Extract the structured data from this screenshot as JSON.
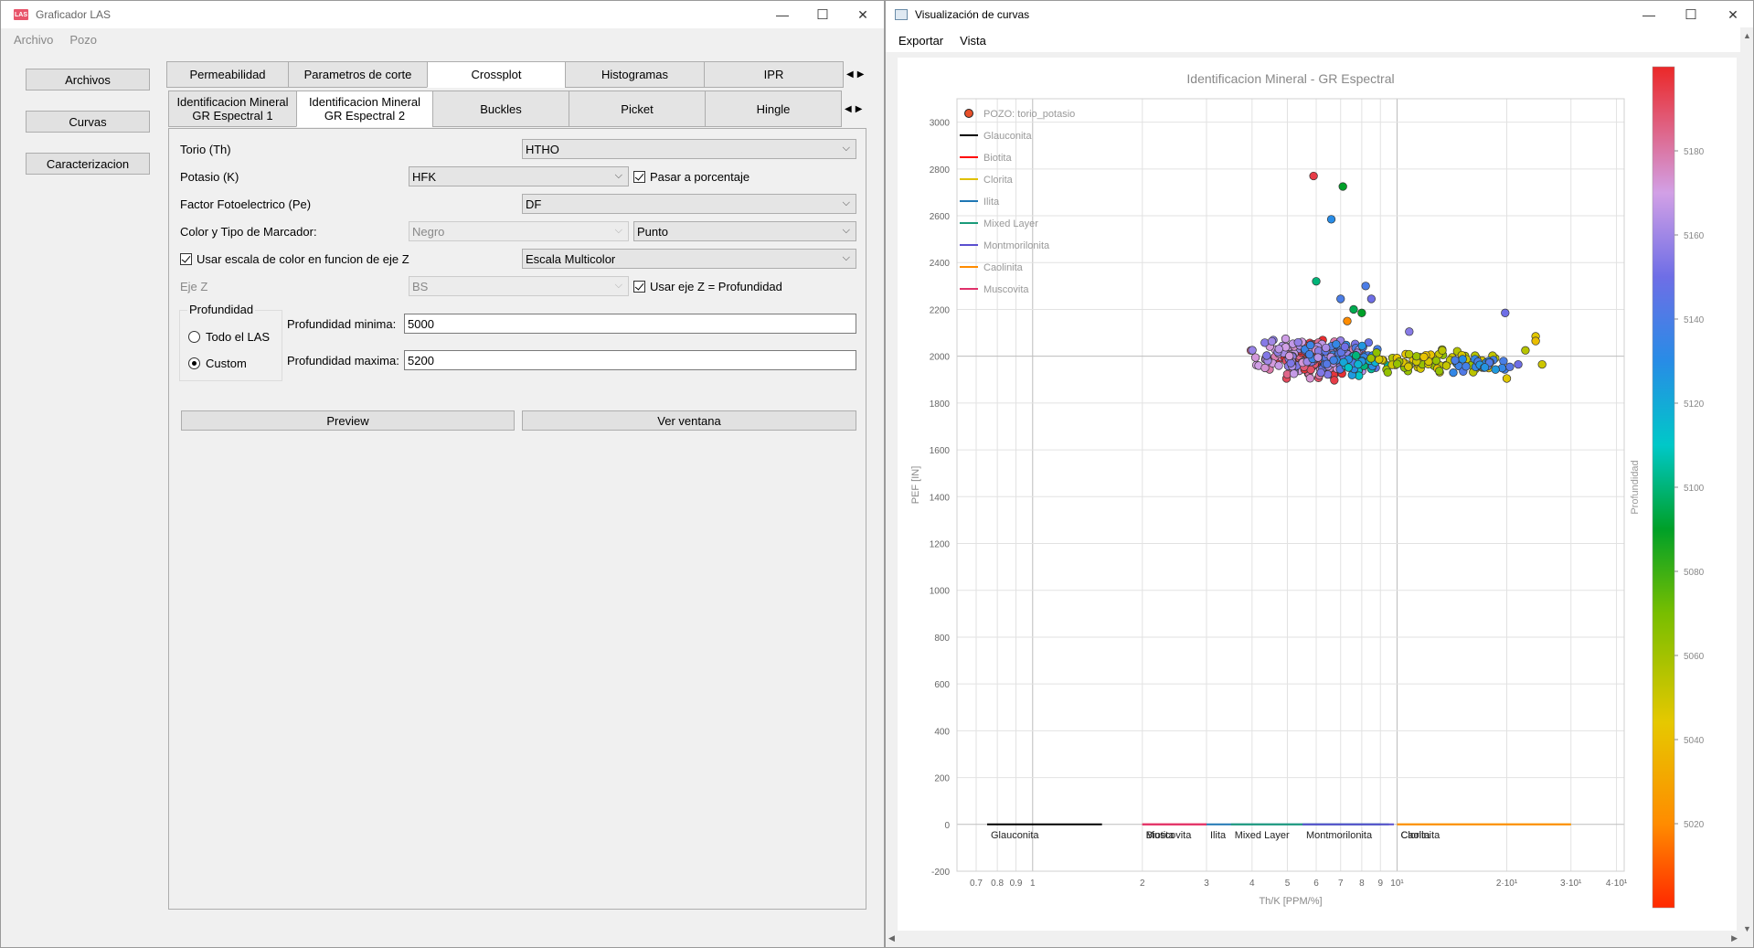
{
  "left_window": {
    "title": "Graficador LAS",
    "icon_text": "LAS",
    "controls": {
      "minimize": "—",
      "maximize": "☐",
      "close": "✕"
    },
    "menu": [
      "Archivo",
      "Pozo"
    ],
    "sidebar": [
      "Archivos",
      "Curvas",
      "Caracterizacion"
    ],
    "main_tabs": [
      "Permeabilidad",
      "Parametros de corte",
      "Crossplot",
      "Histogramas",
      "IPR"
    ],
    "sub_tabs": [
      "Identificacion Mineral\nGR Espectral 1",
      "Identificacion Mineral\nGR Espectral 2",
      "Buckles",
      "Picket",
      "Hingle"
    ],
    "form": {
      "torio_label": "Torio (Th)",
      "torio_value": "HTHO",
      "potasio_label": "Potasio (K)",
      "potasio_value": "HFK",
      "pasar_porcentaje": "Pasar a porcentaje",
      "pe_label": "Factor Fotoelectrico (Pe)",
      "pe_value": "DF",
      "marcador_label": "Color y Tipo de Marcador:",
      "color_value": "Negro",
      "tipo_value": "Punto",
      "escala_label": "Usar escala de color en funcion de eje Z",
      "escala_value": "Escala Multicolor",
      "ejez_label": "Eje Z",
      "ejez_value": "BS",
      "ejez_prof": "Usar eje Z = Profundidad",
      "prof_group": "Profundidad",
      "todo_las": "Todo el LAS",
      "custom": "Custom",
      "prof_min_label": "Profundidad minima:",
      "prof_min": "5000",
      "prof_max_label": "Profundidad maxima:",
      "prof_max": "5200",
      "preview": "Preview",
      "ver_ventana": "Ver ventana"
    }
  },
  "right_window": {
    "title": "Visualización de curvas",
    "controls": {
      "minimize": "—",
      "maximize": "☐",
      "close": "✕"
    },
    "menu": [
      "Exportar",
      "Vista"
    ]
  },
  "chart_data": {
    "type": "scatter",
    "title": "Identificacion Mineral - GR Espectral",
    "xlabel": "Th/K [PPM/%]",
    "ylabel": "PEF [IN]",
    "xscale": "log",
    "xlim": [
      0.62,
      42
    ],
    "ylim": [
      -200,
      3100
    ],
    "x_ticks": [
      {
        "v": 0.7,
        "label": "0.7"
      },
      {
        "v": 0.8,
        "label": "0.8"
      },
      {
        "v": 0.9,
        "label": "0.9"
      },
      {
        "v": 1,
        "label": "1"
      },
      {
        "v": 2,
        "label": "2"
      },
      {
        "v": 3,
        "label": "3"
      },
      {
        "v": 4,
        "label": "4"
      },
      {
        "v": 5,
        "label": "5"
      },
      {
        "v": 6,
        "label": "6"
      },
      {
        "v": 7,
        "label": "7"
      },
      {
        "v": 8,
        "label": "8"
      },
      {
        "v": 9,
        "label": "9"
      },
      {
        "v": 10,
        "label": "10¹"
      },
      {
        "v": 20,
        "label": "2·10¹"
      },
      {
        "v": 30,
        "label": "3·10¹"
      },
      {
        "v": 40,
        "label": "4·10¹"
      }
    ],
    "y_ticks": [
      -200,
      0,
      200,
      400,
      600,
      800,
      1000,
      1200,
      1400,
      1600,
      1800,
      2000,
      2200,
      2400,
      2600,
      2800,
      3000
    ],
    "legend": [
      {
        "name": "POZO: torio_potasio",
        "marker": "point"
      },
      {
        "name": "Glauconita",
        "color": "#000000"
      },
      {
        "name": "Biotita",
        "color": "#ff0000"
      },
      {
        "name": "Clorita",
        "color": "#e0c000"
      },
      {
        "name": "Ilita",
        "color": "#1f77b4"
      },
      {
        "name": "Mixed Layer",
        "color": "#1a9a7a"
      },
      {
        "name": "Montmorilonita",
        "color": "#5a4fcf"
      },
      {
        "name": "Caolinita",
        "color": "#ff8c00"
      },
      {
        "name": "Muscovita",
        "color": "#e0306a"
      }
    ],
    "mineral_bands": [
      {
        "name": "Glauconita",
        "label": "Glauconita",
        "x0": 0.75,
        "x1": 1.55,
        "color": "#000000"
      },
      {
        "name": "Biotita",
        "label": "Biotita",
        "x0": 2.0,
        "x1": 3.0,
        "color": "#ff0000"
      },
      {
        "name": "Muscovita",
        "label": "Muscovita",
        "x0": 2.0,
        "x1": 3.0,
        "color": "#e0306a"
      },
      {
        "name": "Ilita",
        "label": "Ilita",
        "x0": 3.0,
        "x1": 9.0,
        "color": "#1f77b4"
      },
      {
        "name": "Mixed Layer",
        "label": "Mixed Layer",
        "x0": 3.5,
        "x1": 9.5,
        "color": "#1a9a7a"
      },
      {
        "name": "Montmorilonita",
        "label": "Montmorilonita",
        "x0": 5.5,
        "x1": 9.8,
        "color": "#5a4fcf"
      },
      {
        "name": "Clorita",
        "label": "Clorita",
        "x0": 10,
        "x1": 30,
        "color": "#e0c000"
      },
      {
        "name": "Caolinita",
        "label": "Caolinita",
        "x0": 10,
        "x1": 30,
        "color": "#ff8c00"
      }
    ],
    "colorbar": {
      "label": "Profundidad",
      "min": 5000,
      "max": 5200,
      "ticks": [
        5020,
        5040,
        5060,
        5080,
        5100,
        5120,
        5140,
        5160,
        5180
      ]
    },
    "clusters": [
      {
        "cx": 5.9,
        "cy": 1985,
        "sx": 0.09,
        "sy": 55,
        "n": 150,
        "depth": [
          5170,
          5200
        ]
      },
      {
        "cx": 5.4,
        "cy": 2000,
        "sx": 0.1,
        "sy": 50,
        "n": 70,
        "depth": [
          5150,
          5175
        ]
      },
      {
        "cx": 7.0,
        "cy": 1990,
        "sx": 0.08,
        "sy": 45,
        "n": 70,
        "depth": [
          5130,
          5165
        ]
      },
      {
        "cx": 7.8,
        "cy": 1975,
        "sx": 0.06,
        "sy": 40,
        "n": 40,
        "depth": [
          5100,
          5140
        ]
      },
      {
        "cx": 12.5,
        "cy": 1975,
        "sx": 0.14,
        "sy": 35,
        "n": 70,
        "depth": [
          5040,
          5065
        ]
      },
      {
        "cx": 17.0,
        "cy": 1965,
        "sx": 0.1,
        "sy": 25,
        "n": 25,
        "depth": [
          5125,
          5145
        ]
      }
    ],
    "points": [
      {
        "x": 5.9,
        "y": 2770,
        "depth": 5195
      },
      {
        "x": 7.1,
        "y": 2725,
        "depth": 5090
      },
      {
        "x": 6.6,
        "y": 2585,
        "depth": 5130
      },
      {
        "x": 6.0,
        "y": 2320,
        "depth": 5100
      },
      {
        "x": 8.2,
        "y": 2300,
        "depth": 5140
      },
      {
        "x": 7.0,
        "y": 2245,
        "depth": 5140
      },
      {
        "x": 8.5,
        "y": 2245,
        "depth": 5150
      },
      {
        "x": 7.6,
        "y": 2200,
        "depth": 5095
      },
      {
        "x": 8.0,
        "y": 2185,
        "depth": 5090
      },
      {
        "x": 7.3,
        "y": 2150,
        "depth": 5020
      },
      {
        "x": 19.8,
        "y": 2185,
        "depth": 5150
      },
      {
        "x": 10.8,
        "y": 2105,
        "depth": 5155
      },
      {
        "x": 24.0,
        "y": 2085,
        "depth": 5045
      },
      {
        "x": 24.0,
        "y": 2065,
        "depth": 5040
      },
      {
        "x": 22.5,
        "y": 2025,
        "depth": 5055
      },
      {
        "x": 21.5,
        "y": 1965,
        "depth": 5150
      },
      {
        "x": 25.0,
        "y": 1965,
        "depth": 5050
      },
      {
        "x": 20.0,
        "y": 1905,
        "depth": 5045
      }
    ]
  }
}
